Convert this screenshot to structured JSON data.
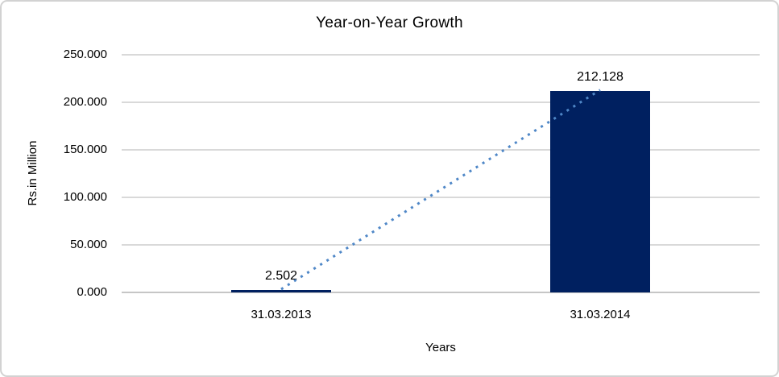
{
  "chart_data": {
    "type": "bar",
    "title": "Year-on-Year Growth",
    "xlabel": "Years",
    "ylabel": "Rs.in Million",
    "categories": [
      "31.03.2013",
      "31.03.2014"
    ],
    "values": [
      2.502,
      212.128
    ],
    "value_labels": [
      "2.502",
      "212.128"
    ],
    "yticks": [
      0,
      50,
      100,
      150,
      200,
      250
    ],
    "ytick_labels": [
      "0.000",
      "50.000",
      "100.000",
      "150.000",
      "200.000",
      "250.000"
    ],
    "ylim": [
      0,
      250
    ],
    "grid": true,
    "legend": false,
    "trendline": true,
    "colors": {
      "bar": "#002060",
      "trendline": "#4f87c7",
      "gridline": "#d9d9d9",
      "axis_line": "#c6c6c6",
      "frame_border": "#d2d2d2",
      "text": "#000000"
    }
  }
}
